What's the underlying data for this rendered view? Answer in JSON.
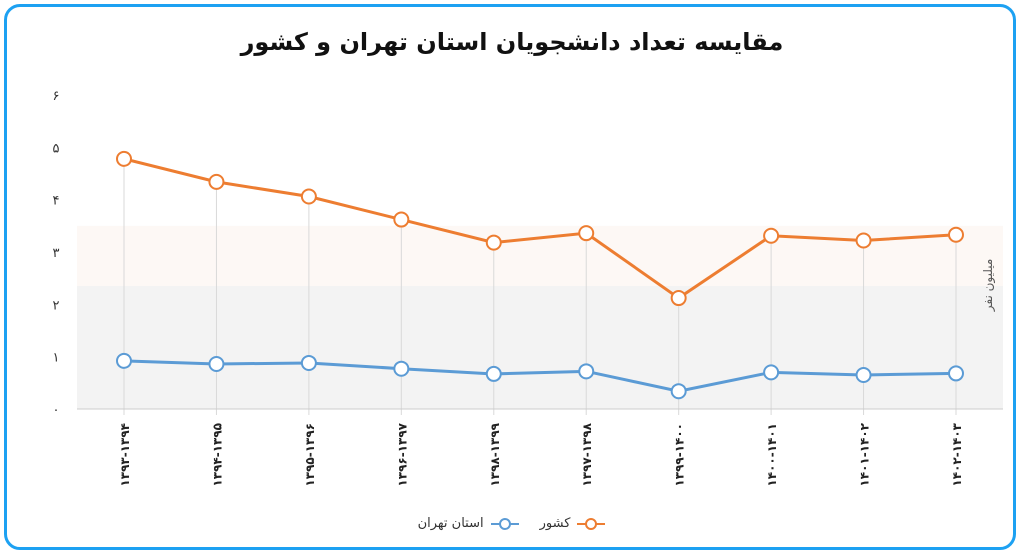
{
  "title": "مقایسه تعداد دانشجویان استان تهران و کشور",
  "chart_data": {
    "type": "line",
    "title": "مقایسه تعداد دانشجویان استان تهران و کشور",
    "ylabel": "میلیون نفر",
    "xlabel": "",
    "ylim": [
      0,
      6
    ],
    "yticks": [
      "۰",
      "۱",
      "۲",
      "۳",
      "۴",
      "۵",
      "۶"
    ],
    "categories": [
      "۱۳۹۳-۱۳۹۴",
      "۱۳۹۴-۱۳۹۵",
      "۱۳۹۵-۱۳۹۶",
      "۱۳۹۶-۱۳۹۷",
      "۱۳۹۸-۱۳۹۹",
      "۱۳۹۷-۱۳۹۸",
      "۱۳۹۹-۱۴۰۰",
      "۱۴۰۰-۱۴۰۱",
      "۱۴۰۱-۱۴۰۲",
      "۱۴۰۲-۱۴۰۳"
    ],
    "series": [
      {
        "name": "استان تهران",
        "color": "#5b9bd5",
        "values": [
          0.92,
          0.86,
          0.88,
          0.77,
          0.67,
          0.72,
          0.34,
          0.7,
          0.65,
          0.68
        ]
      },
      {
        "name": "کشور",
        "color": "#ed7d31",
        "values": [
          4.78,
          4.34,
          4.06,
          3.62,
          3.18,
          3.36,
          2.12,
          3.31,
          3.22,
          3.33
        ]
      }
    ],
    "grid": false,
    "legend_position": "bottom"
  }
}
